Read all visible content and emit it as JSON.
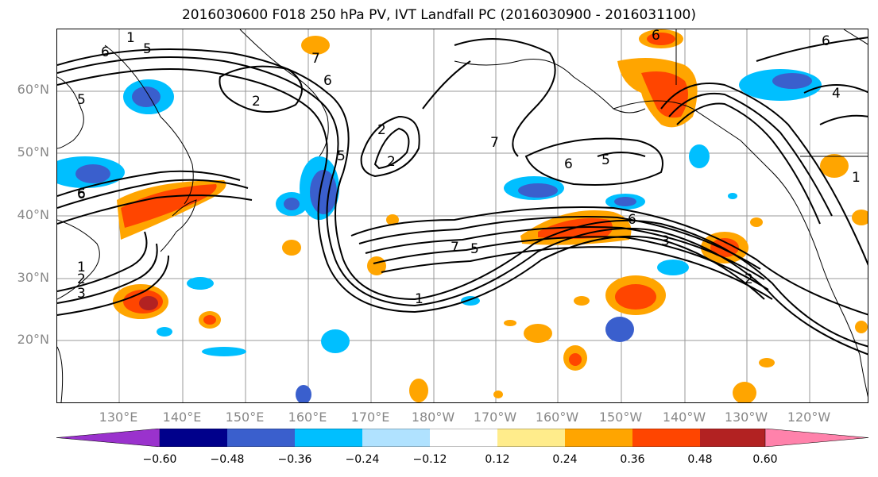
{
  "title": "2016030600 F018 250 hPa PV, IVT Landfall PC (2016030900 - 2016031100)",
  "lat_labels": [
    "60°N",
    "50°N",
    "40°N",
    "30°N",
    "20°N"
  ],
  "lon_labels": [
    "130°E",
    "140°E",
    "150°E",
    "160°E",
    "170°E",
    "180°W",
    "170°W",
    "160°W",
    "150°W",
    "140°W",
    "130°W",
    "120°W"
  ],
  "colorbar": {
    "ticks": [
      "−0.60",
      "−0.48",
      "−0.36",
      "−0.24",
      "−0.12",
      "0.12",
      "0.24",
      "0.36",
      "0.48",
      "0.60"
    ],
    "colors": [
      "#9a32cd",
      "#00008b",
      "#3a5fcd",
      "#00bfff",
      "#b0e2ff",
      "#ffffff",
      "#ffec8b",
      "#ffa500",
      "#ff4500",
      "#b22222",
      "#ff82ab"
    ]
  },
  "contour_labels": [
    "1",
    "6",
    "5",
    "5",
    "6",
    "2",
    "3",
    "1",
    "2",
    "7",
    "6",
    "2",
    "2",
    "7",
    "6",
    "5",
    "6",
    "5",
    "7",
    "5",
    "1",
    "6",
    "3",
    "2",
    "6",
    "4",
    "6",
    "1"
  ]
}
